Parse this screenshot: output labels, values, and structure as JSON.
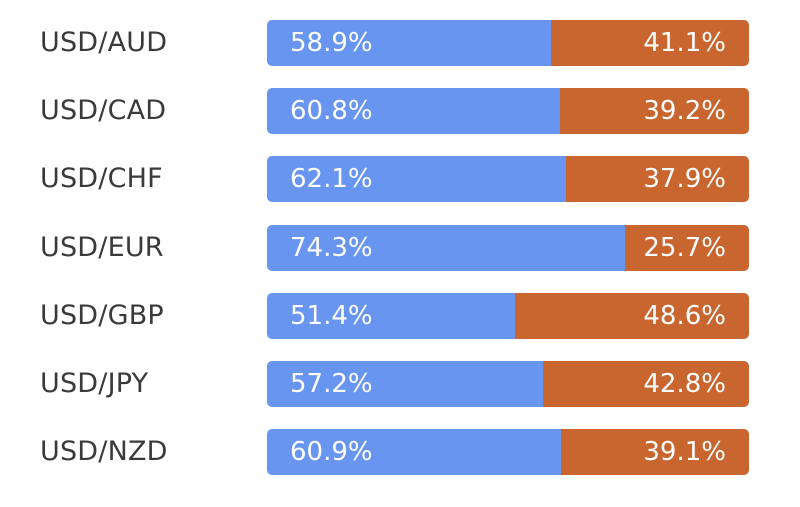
{
  "colors": {
    "long": "#6895ef",
    "short": "#c9652f",
    "label_text": "#3a3a3a",
    "value_text": "#ffffff"
  },
  "chart_data": {
    "type": "bar",
    "orientation": "horizontal",
    "stacked": true,
    "percent": true,
    "categories": [
      "USD/AUD",
      "USD/CAD",
      "USD/CHF",
      "USD/EUR",
      "USD/GBP",
      "USD/JPY",
      "USD/NZD"
    ],
    "series": [
      {
        "values": [
          58.9,
          60.8,
          62.1,
          74.3,
          51.4,
          57.2,
          60.9
        ],
        "labels": [
          "58.9%",
          "60.8%",
          "62.1%",
          "74.3%",
          "51.4%",
          "57.2%",
          "60.9%"
        ]
      },
      {
        "values": [
          41.1,
          39.2,
          37.9,
          25.7,
          48.6,
          42.8,
          39.1
        ],
        "labels": [
          "41.1%",
          "39.2%",
          "37.9%",
          "25.7%",
          "48.6%",
          "42.8%",
          "39.1%"
        ]
      }
    ],
    "xlim": [
      0,
      100
    ],
    "grid": false
  }
}
